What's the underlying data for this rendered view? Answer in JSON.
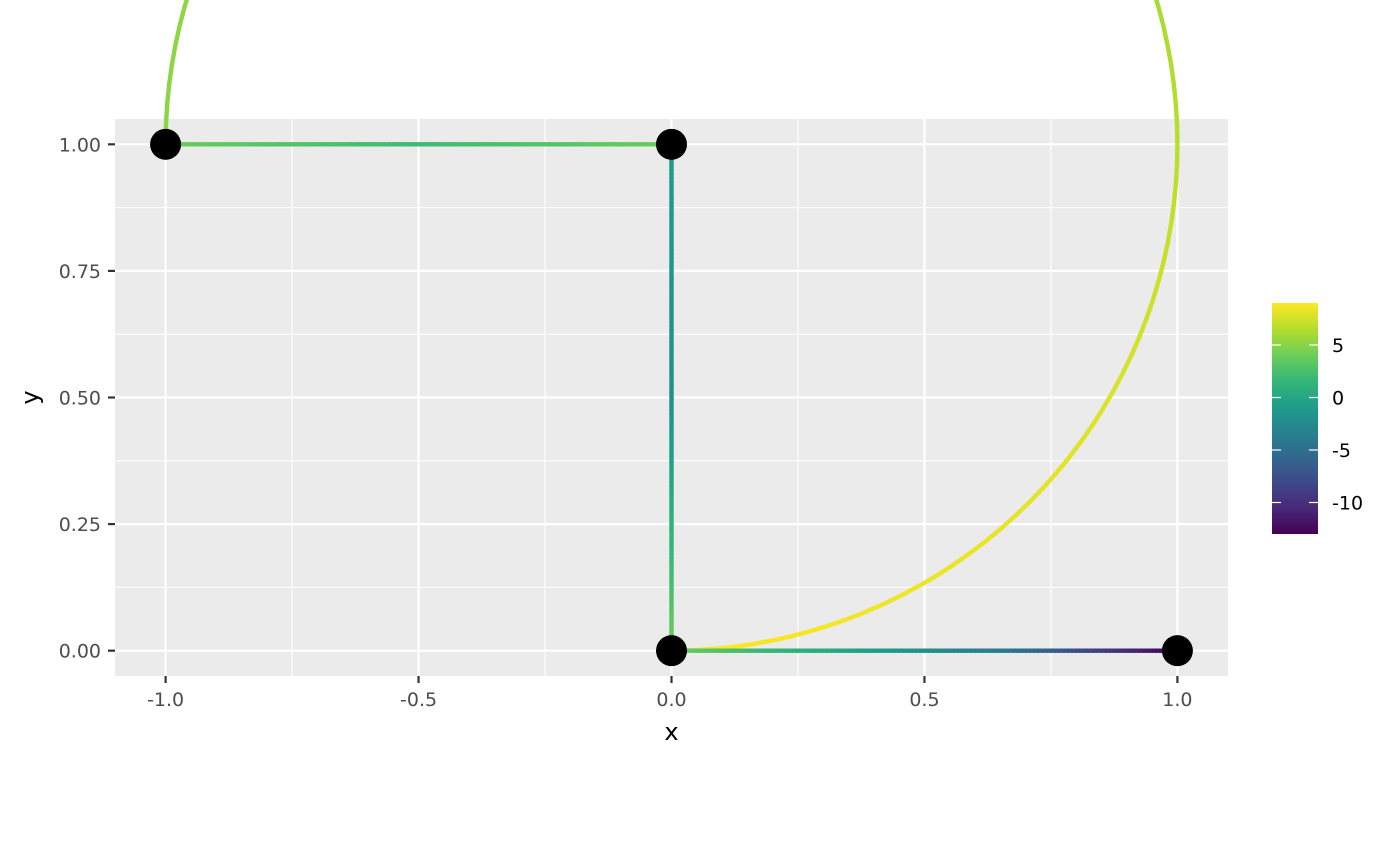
{
  "chart_data": {
    "type": "line",
    "xlabel": "x",
    "ylabel": "y",
    "xlim": [
      -1.1,
      1.1
    ],
    "ylim": [
      -0.05,
      1.05
    ],
    "grid": true,
    "panel_background": "#ebebeb",
    "grid_color": "#ffffff",
    "x_ticks": [
      {
        "value": -1.0,
        "label": "-1.0"
      },
      {
        "value": -0.5,
        "label": "-0.5"
      },
      {
        "value": 0.0,
        "label": "0.0"
      },
      {
        "value": 0.5,
        "label": "0.5"
      },
      {
        "value": 1.0,
        "label": "1.0"
      }
    ],
    "y_ticks": [
      {
        "value": 0.0,
        "label": "0.00"
      },
      {
        "value": 0.25,
        "label": "0.25"
      },
      {
        "value": 0.5,
        "label": "0.50"
      },
      {
        "value": 0.75,
        "label": "0.75"
      },
      {
        "value": 1.0,
        "label": "1.00"
      }
    ],
    "points": [
      {
        "x": -1.0,
        "y": 1.0
      },
      {
        "x": 0.0,
        "y": 1.0
      },
      {
        "x": 0.0,
        "y": 0.0
      },
      {
        "x": 1.0,
        "y": 0.0
      }
    ],
    "edges": [
      {
        "type": "straight",
        "from": [
          -1.0,
          1.0
        ],
        "to": [
          0.0,
          1.0
        ],
        "color_values": [
          4,
          2,
          4
        ]
      },
      {
        "type": "straight",
        "from": [
          0.0,
          1.0
        ],
        "to": [
          0.0,
          0.0
        ],
        "color_values": [
          -1,
          -2,
          4
        ]
      },
      {
        "type": "arc",
        "from": [
          -1.0,
          1.0
        ],
        "to": [
          0.0,
          0.0
        ],
        "center": [
          0.0,
          1.0
        ],
        "color_values": [
          5,
          6,
          3,
          6,
          8,
          9
        ]
      },
      {
        "type": "straight",
        "from": [
          0.0,
          0.0
        ],
        "to": [
          1.0,
          0.0
        ],
        "color_values": [
          4,
          0,
          -4,
          -13
        ]
      }
    ],
    "legend": {
      "placement": "right",
      "type": "colorbar",
      "palette": "viridis",
      "range": [
        -13,
        9
      ],
      "colors": [
        "#440154",
        "#482878",
        "#3e4989",
        "#31688e",
        "#26828e",
        "#1f9e89",
        "#35b779",
        "#6ece58",
        "#b5de2b",
        "#fde725"
      ],
      "ticks": [
        {
          "value": 5,
          "label": "5"
        },
        {
          "value": 0,
          "label": "0"
        },
        {
          "value": -5,
          "label": "-5"
        },
        {
          "value": -10,
          "label": "-10"
        }
      ]
    }
  }
}
